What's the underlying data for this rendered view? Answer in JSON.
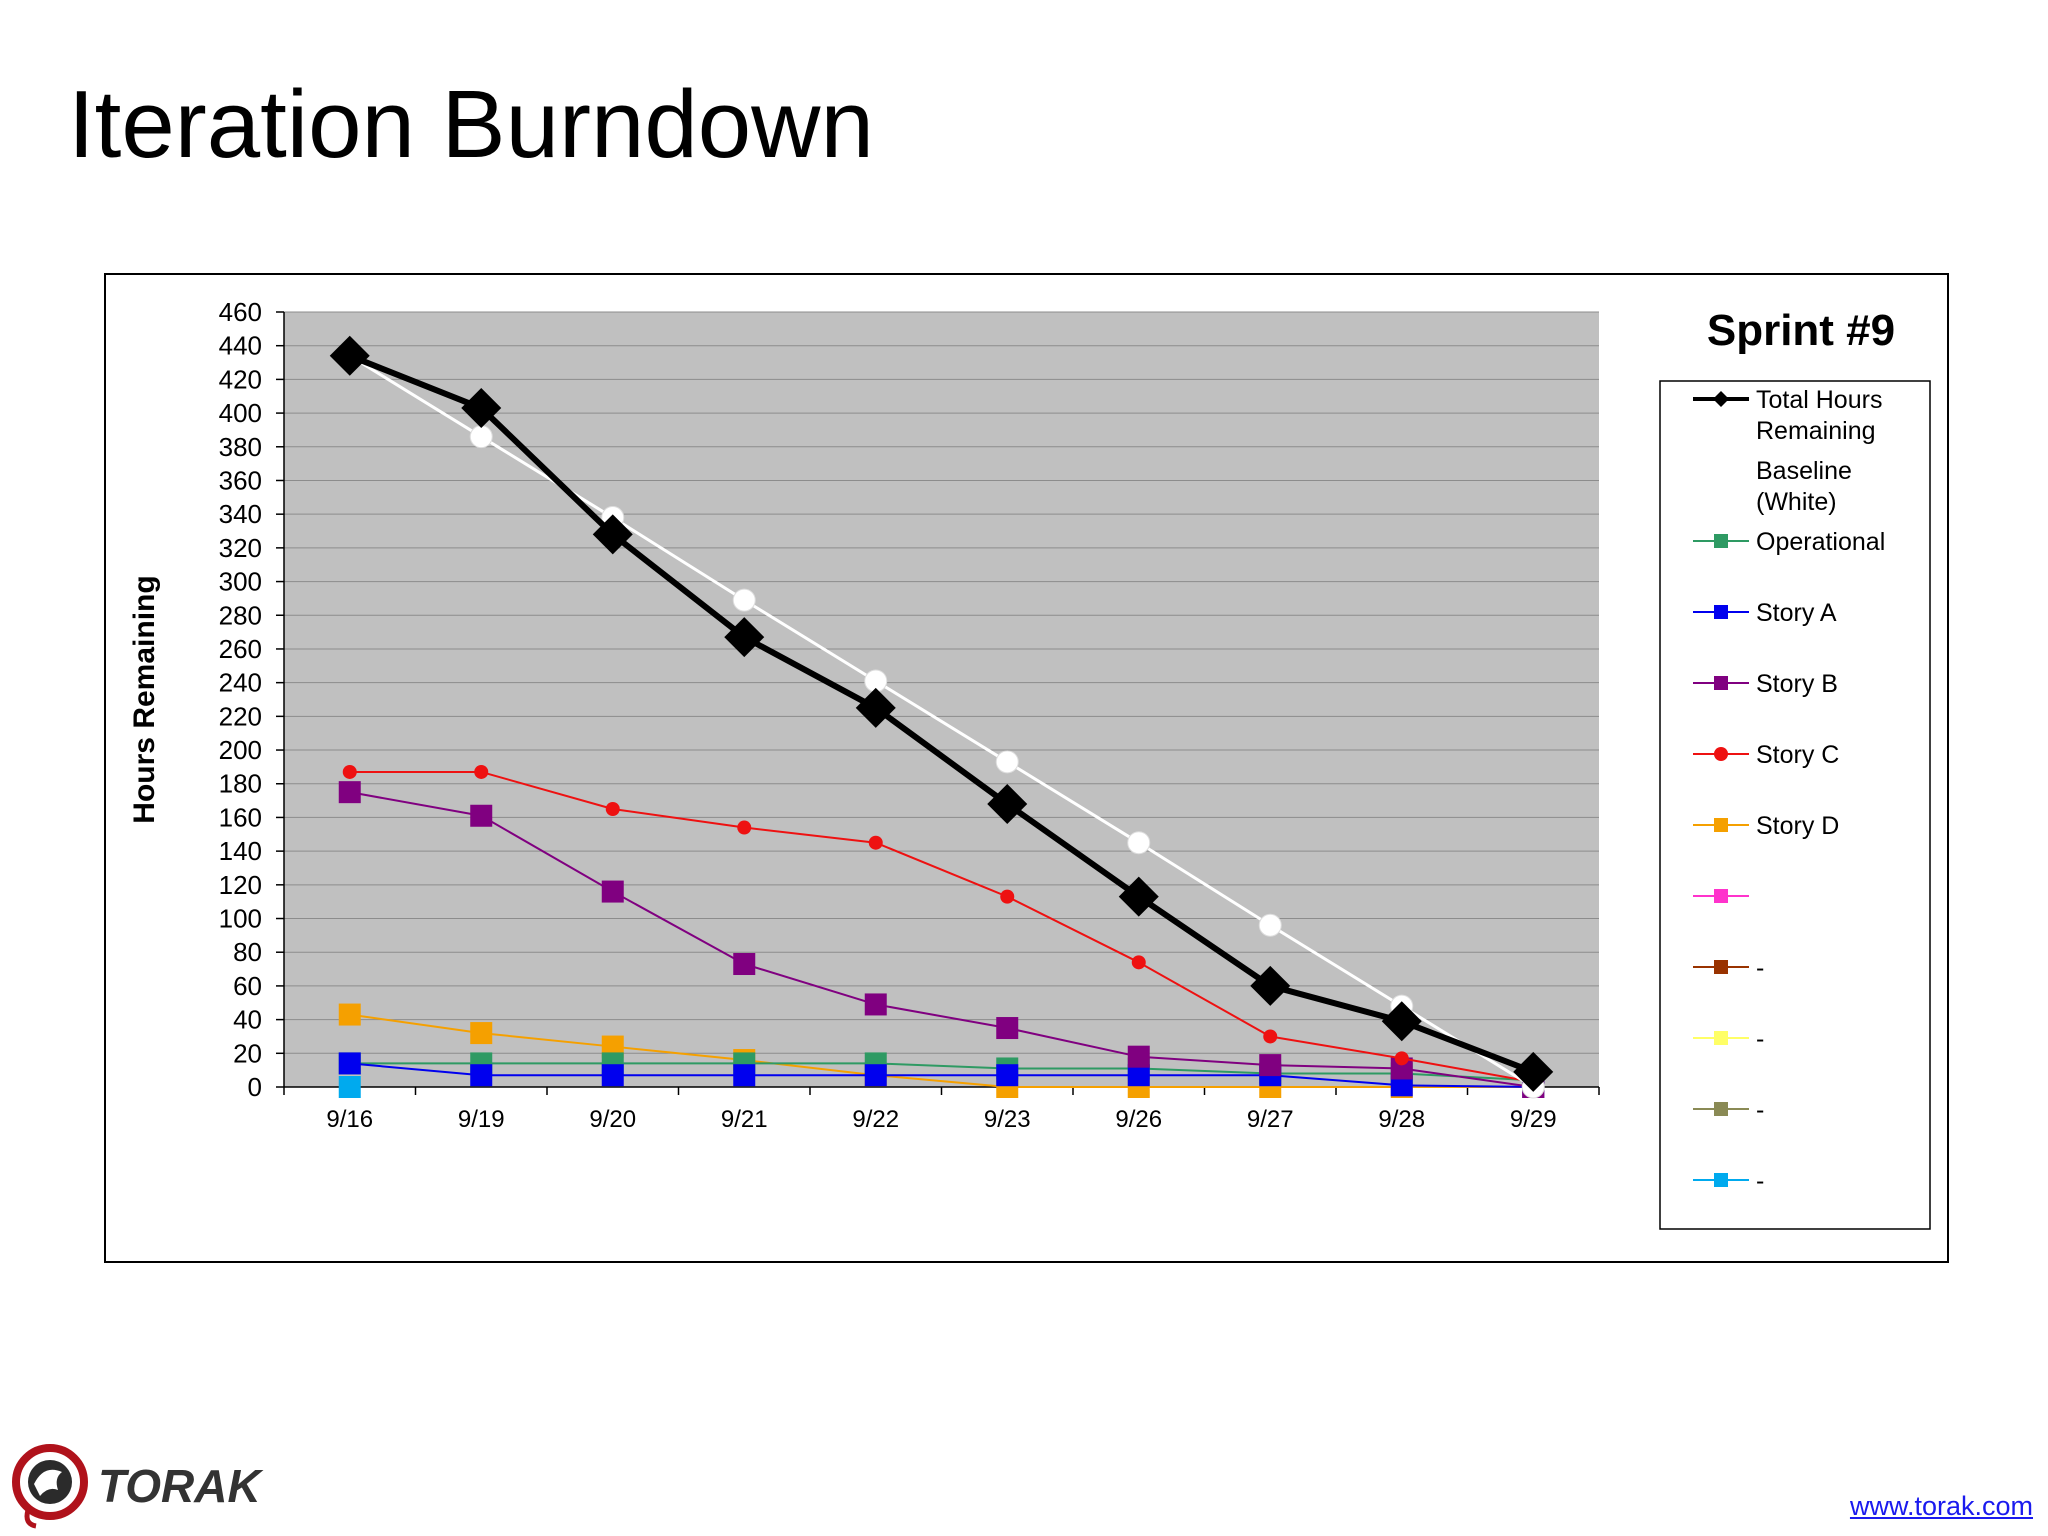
{
  "slide": {
    "title": "Iteration Burndown"
  },
  "footer": {
    "logo_text": "TORAK",
    "link": "www.torak.com"
  },
  "colors": {
    "plot_bg": "#c0c0c0",
    "grid": "#8c8c8c"
  },
  "chart_data": {
    "type": "line",
    "title": "Sprint #9",
    "ylabel": "Hours Remaining",
    "xlabel": "",
    "ylim": [
      0,
      460
    ],
    "yticks": [
      0,
      20,
      40,
      60,
      80,
      100,
      120,
      140,
      160,
      180,
      200,
      220,
      240,
      260,
      280,
      300,
      320,
      340,
      360,
      380,
      400,
      420,
      440,
      460
    ],
    "grid": true,
    "legend_position": "right",
    "categories": [
      "9/16",
      "9/19",
      "9/20",
      "9/21",
      "9/22",
      "9/23",
      "9/26",
      "9/27",
      "9/28",
      "9/29"
    ],
    "series": [
      {
        "name": "Baseline (White)",
        "color": "#ffffff",
        "marker": "circle",
        "width": 3,
        "marker_size": 11,
        "values": [
          434,
          386,
          338,
          289,
          241,
          193,
          145,
          96,
          48,
          0
        ]
      },
      {
        "name": "Total Hours Remaining",
        "color": "#000000",
        "marker": "diamond",
        "width": 6,
        "marker_size": 20,
        "values": [
          434,
          403,
          328,
          267,
          225,
          168,
          113,
          60,
          39,
          9
        ]
      },
      {
        "name": "Operational",
        "color": "#2e9a63",
        "marker": "square",
        "width": 2,
        "marker_size": 11,
        "values": [
          14,
          14,
          14,
          14,
          14,
          11,
          11,
          8,
          8,
          4
        ]
      },
      {
        "name": "Story A",
        "color": "#0000ee",
        "marker": "square",
        "width": 2,
        "marker_size": 11,
        "values": [
          14,
          7,
          7,
          7,
          7,
          7,
          7,
          7,
          1,
          0
        ]
      },
      {
        "name": "Story B",
        "color": "#800080",
        "marker": "square",
        "width": 2,
        "marker_size": 11,
        "values": [
          175,
          161,
          116,
          73,
          49,
          35,
          18,
          13,
          11,
          0
        ]
      },
      {
        "name": "Story C",
        "color": "#ee1111",
        "marker": "circle",
        "width": 2,
        "marker_size": 7,
        "values": [
          187,
          187,
          165,
          154,
          145,
          113,
          74,
          30,
          17,
          3
        ]
      },
      {
        "name": "Story D",
        "color": "#f5a000",
        "marker": "square",
        "width": 2,
        "marker_size": 11,
        "values": [
          43,
          32,
          24,
          16,
          7,
          0,
          0,
          0,
          0,
          0
        ]
      },
      {
        "name": "",
        "color": "#00aaee",
        "marker": "square",
        "width": 2,
        "marker_size": 11,
        "values": [
          0,
          null,
          null,
          null,
          null,
          null,
          null,
          null,
          null,
          null
        ]
      }
    ],
    "legend": [
      {
        "label": "Total Hours Remaining",
        "lines": [
          "Total Hours",
          "Remaining"
        ],
        "color": "#000000",
        "marker": "diamond",
        "line": true
      },
      {
        "label": "Baseline (White)",
        "lines": [
          "Baseline",
          "(White)"
        ],
        "color": "#ffffff",
        "marker": "none",
        "line": false
      },
      {
        "label": "Operational",
        "lines": [
          "Operational"
        ],
        "color": "#2e9a63",
        "marker": "square",
        "line": true
      },
      {
        "label": "Story A",
        "lines": [
          "Story A"
        ],
        "color": "#0000ee",
        "marker": "square",
        "line": true
      },
      {
        "label": "Story B",
        "lines": [
          "Story B"
        ],
        "color": "#800080",
        "marker": "square",
        "line": true
      },
      {
        "label": "Story C",
        "lines": [
          "Story C"
        ],
        "color": "#ee1111",
        "marker": "circle",
        "line": true
      },
      {
        "label": "Story D",
        "lines": [
          "Story D"
        ],
        "color": "#f5a000",
        "marker": "square",
        "line": true
      },
      {
        "label": "",
        "lines": [
          ""
        ],
        "color": "#ff33cc",
        "marker": "square",
        "line": true
      },
      {
        "label": "-",
        "lines": [
          "-"
        ],
        "color": "#993300",
        "marker": "square",
        "line": true
      },
      {
        "label": "-",
        "lines": [
          "-"
        ],
        "color": "#ffff66",
        "marker": "square",
        "line": true
      },
      {
        "label": "-",
        "lines": [
          "-"
        ],
        "color": "#8a8a55",
        "marker": "square",
        "line": true
      },
      {
        "label": "-",
        "lines": [
          "-"
        ],
        "color": "#00aaee",
        "marker": "square",
        "line": true
      }
    ]
  }
}
